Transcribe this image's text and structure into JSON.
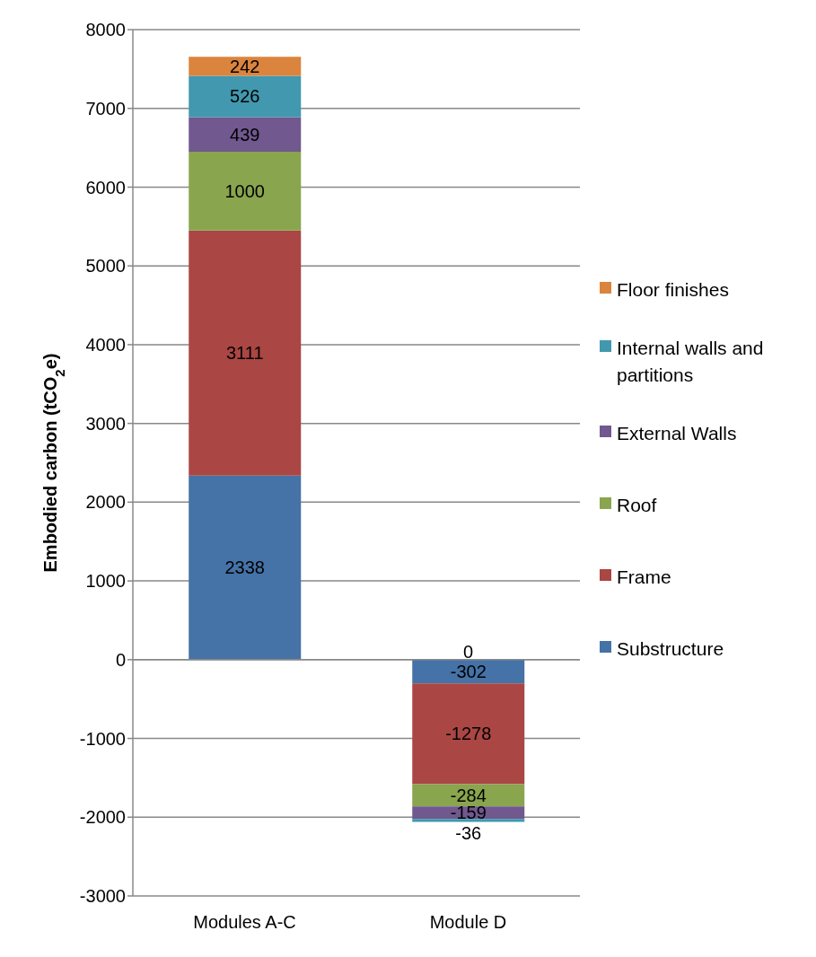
{
  "chart_data": {
    "type": "bar",
    "stacked": true,
    "categories": [
      "Modules A-C",
      "Module D"
    ],
    "ylabel": "Embodied carbon (tCO$_{2}$e)",
    "ylim": [
      -3000,
      8000
    ],
    "yticks": [
      -3000,
      -2000,
      -1000,
      0,
      1000,
      2000,
      3000,
      4000,
      5000,
      6000,
      7000,
      8000
    ],
    "grid": "y",
    "legend": "right",
    "data_labels": true,
    "series": [
      {
        "name": "Substructure",
        "color": "#4572a7",
        "values": [
          2338,
          -302
        ]
      },
      {
        "name": "Frame",
        "color": "#aa4643",
        "values": [
          3111,
          -1278
        ]
      },
      {
        "name": "Roof",
        "color": "#89a54e",
        "values": [
          1000,
          -284
        ]
      },
      {
        "name": "External Walls",
        "color": "#71588f",
        "values": [
          439,
          -159
        ]
      },
      {
        "name": "Internal walls and partitions",
        "color": "#4198af",
        "values": [
          526,
          -36
        ]
      },
      {
        "name": "Floor finishes",
        "color": "#db843d",
        "values": [
          242,
          0
        ]
      }
    ]
  }
}
